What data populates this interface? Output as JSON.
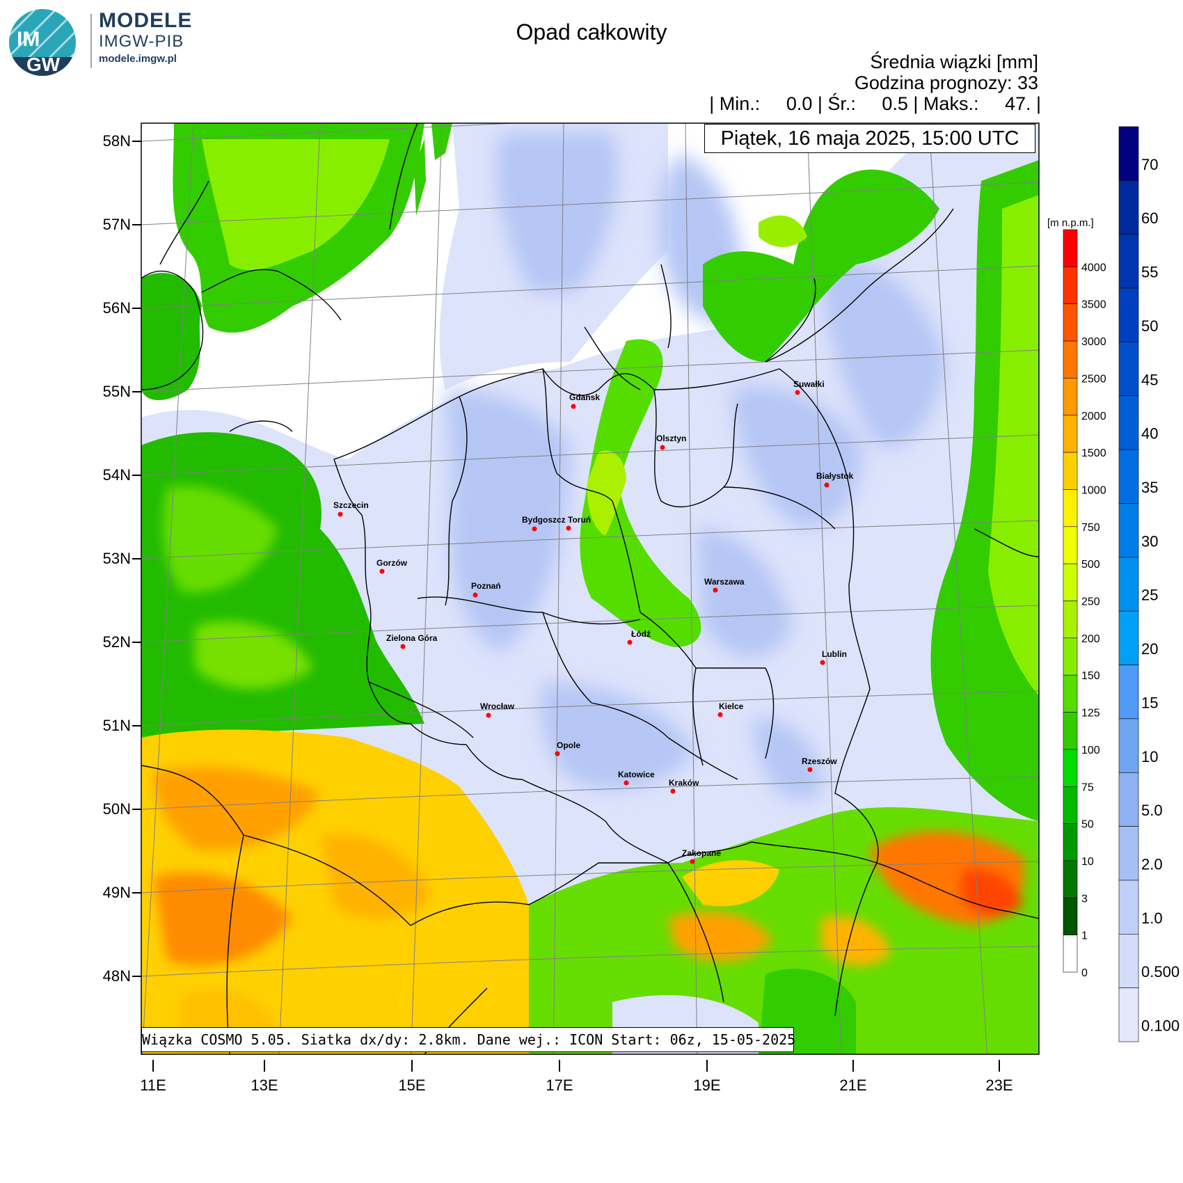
{
  "brand": {
    "logo_text_top": "IM",
    "logo_text_bottom": "GW",
    "title": "MODELE",
    "subtitle": "IMGW-PIB",
    "url": "modele.imgw.pl"
  },
  "header": {
    "title": "Opad całkowity",
    "line1": "Średnia wiązki [mm]",
    "line2": "Godzina prognozy: 33",
    "stats": "| Min.:     0.0 | Śr.:     0.5 | Maks.:     47. |",
    "date": "Piątek, 16 maja 2025, 15:00 UTC"
  },
  "footer": {
    "text": "Wiązka COSMO 5.05. Siatka dx/dy: 2.8km. Dane wej.: ICON Start: 06z, 15-05-2025"
  },
  "map": {
    "lat_labels": [
      "58N",
      "57N",
      "56N",
      "55N",
      "54N",
      "53N",
      "52N",
      "51N",
      "50N",
      "49N",
      "48N"
    ],
    "lon_labels": [
      "11E",
      "13E",
      "15E",
      "17E",
      "19E",
      "21E",
      "23E"
    ],
    "cities": [
      {
        "name": "Gdańsk"
      },
      {
        "name": "Olsztyn"
      },
      {
        "name": "Suwałki"
      },
      {
        "name": "Białystok"
      },
      {
        "name": "Szczecin"
      },
      {
        "name": "Bydgoszcz"
      },
      {
        "name": "Toruń"
      },
      {
        "name": "Gorzów"
      },
      {
        "name": "Poznań"
      },
      {
        "name": "Warszawa"
      },
      {
        "name": "Zielona Góra"
      },
      {
        "name": "Łódź"
      },
      {
        "name": "Lublin"
      },
      {
        "name": "Wrocław"
      },
      {
        "name": "Kielce"
      },
      {
        "name": "Opole"
      },
      {
        "name": "Rzeszów"
      },
      {
        "name": "Katowice"
      },
      {
        "name": "Kraków"
      },
      {
        "name": "Zakopane"
      }
    ],
    "colors": {
      "sea": "#ffffff",
      "land_lowland": "#dde3fb",
      "precip_light": "#b5c6f5",
      "precip_medium": "#8fb0f2",
      "border": "#000000",
      "grid": "#808080",
      "city_dot": "#ff0000"
    }
  },
  "legend_height": {
    "unit": "[m n.p.m.]",
    "levels": [
      "4000",
      "3500",
      "3000",
      "2500",
      "2000",
      "1500",
      "1000",
      "750",
      "500",
      "250",
      "200",
      "150",
      "125",
      "100",
      "75",
      "50",
      "10",
      "3",
      "1",
      "0"
    ],
    "colors": [
      "#ff0000",
      "#ff3300",
      "#ff5500",
      "#ff7700",
      "#ff9900",
      "#ffb300",
      "#ffd000",
      "#fff200",
      "#eeff00",
      "#ccff00",
      "#aaf000",
      "#88ee00",
      "#55dd00",
      "#33cc00",
      "#00dd00",
      "#00bb00",
      "#009900",
      "#007700",
      "#005500",
      "#ffffff"
    ]
  },
  "legend_precip": {
    "levels": [
      "70",
      "60",
      "55",
      "50",
      "45",
      "40",
      "35",
      "30",
      "25",
      "20",
      "15",
      "10",
      "5.0",
      "2.0",
      "1.0",
      "0.500",
      "0.100"
    ],
    "colors": [
      "#000080",
      "#002a9e",
      "#0035b0",
      "#0040c0",
      "#0050cc",
      "#005fd6",
      "#006ee0",
      "#007ee8",
      "#0090ee",
      "#00a0f5",
      "#4f9bf5",
      "#6ea6f2",
      "#8fb0f2",
      "#a8bff4",
      "#c0cff7",
      "#d3ddf9",
      "#e3e9fb"
    ]
  }
}
